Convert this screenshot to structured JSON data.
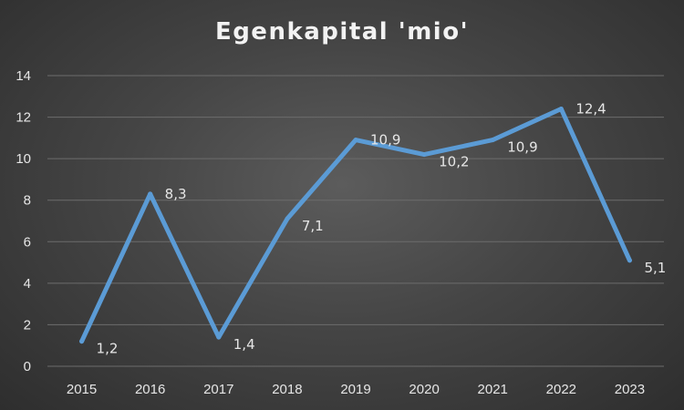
{
  "chart_data": {
    "type": "line",
    "title": "Egenkapital 'mio'",
    "categories": [
      "2015",
      "2016",
      "2017",
      "2018",
      "2019",
      "2020",
      "2021",
      "2022",
      "2023"
    ],
    "series": [
      {
        "values": [
          1.2,
          8.3,
          1.4,
          7.1,
          10.9,
          10.2,
          10.9,
          12.4,
          5.1
        ],
        "labels": [
          "1,2",
          "8,3",
          "1,4",
          "7,1",
          "10,9",
          "10,2",
          "10,9",
          "12,4",
          "5,1"
        ],
        "color": "#5b9bd5"
      }
    ],
    "ylim": [
      0,
      14
    ],
    "yticks": [
      "0",
      "2",
      "4",
      "6",
      "8",
      "10",
      "12",
      "14"
    ],
    "grid": true,
    "legend": "none",
    "background": "#3f3f3f"
  }
}
